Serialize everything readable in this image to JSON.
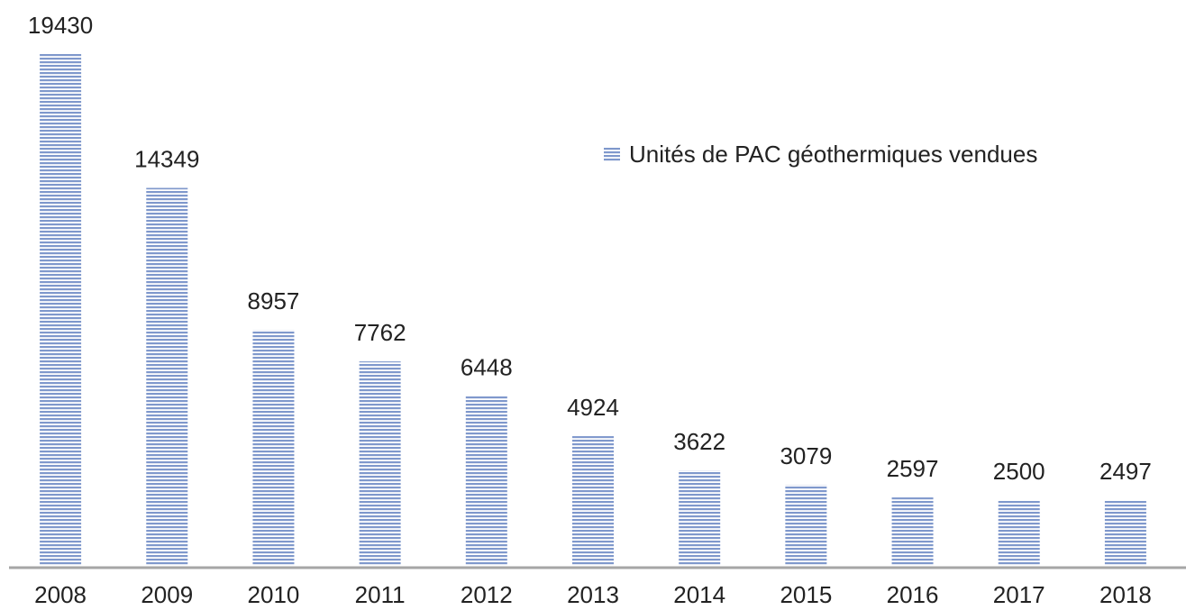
{
  "chart_data": {
    "type": "bar",
    "categories": [
      "2008",
      "2009",
      "2010",
      "2011",
      "2012",
      "2013",
      "2014",
      "2015",
      "2016",
      "2017",
      "2018"
    ],
    "series": [
      {
        "name": "Unités de PAC géothermiques vendues",
        "color": "#7f98cc",
        "values": [
          19430,
          14349,
          8957,
          7762,
          6448,
          4924,
          3622,
          3079,
          2597,
          2500,
          2497
        ]
      }
    ],
    "legend": "upper right"
  }
}
